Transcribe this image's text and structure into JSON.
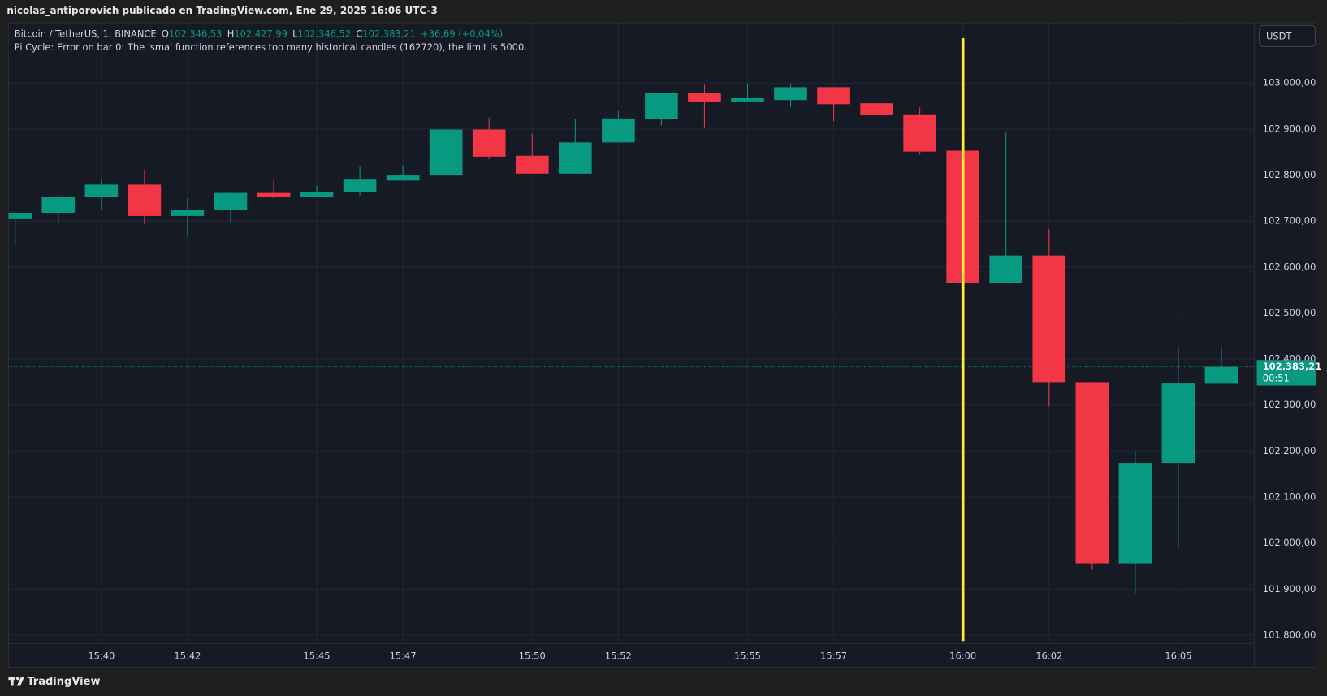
{
  "header": {
    "text": "nicolas_antiporovich publicado en TradingView.com, Ene 29, 2025 16:06 UTC-3"
  },
  "footer": {
    "brand": "TradingView"
  },
  "chart_data": {
    "type": "candlestick",
    "symbol": "Bitcoin / TetherUS, 1, BINANCE",
    "ohlc_legend": [
      {
        "name": "O",
        "label": "102.346,53"
      },
      {
        "name": "H",
        "label": "102.427,99"
      },
      {
        "name": "L",
        "label": "102.346,52"
      },
      {
        "name": "C",
        "label": "102.383,21"
      }
    ],
    "change": "+36,69 (+0,04%)",
    "error": "Pi Cycle: Error on bar 0: The 'sma' function references too many historical candles (162720), the limit is 5000.",
    "currency": "USDT",
    "up_color": "#089981",
    "down_color": "#f23645",
    "grid": true,
    "x": [
      "15:38",
      "15:39",
      "15:40",
      "15:41",
      "15:42",
      "15:43",
      "15:44",
      "15:45",
      "15:46",
      "15:47",
      "15:48",
      "15:49",
      "15:50",
      "15:51",
      "15:52",
      "15:53",
      "15:54",
      "15:55",
      "15:56",
      "15:57",
      "15:58",
      "15:59",
      "16:00",
      "16:01",
      "16:02",
      "16:03",
      "16:04",
      "16:05",
      "16:06"
    ],
    "open": [
      102704,
      102718,
      102753,
      102779,
      102711,
      102724,
      102761,
      102752,
      102763,
      102788,
      102799,
      102899,
      102842,
      102803,
      102871,
      102921,
      102978,
      102960,
      102963,
      102991,
      102956,
      102932,
      102853,
      102566,
      102625,
      102350,
      101956,
      102174,
      102346.53
    ],
    "high": [
      102718,
      102757,
      102790,
      102812,
      102750,
      102764,
      102788,
      102777,
      102818,
      102821,
      102899,
      102925,
      102890,
      102921,
      102939,
      102978,
      102996,
      102998,
      102998,
      102991,
      102956,
      102947,
      102853,
      102895,
      102683,
      102350,
      102199,
      102426,
      102427.99
    ],
    "low": [
      102647,
      102694,
      102724,
      102693,
      102669,
      102698,
      102748,
      102752,
      102755,
      102788,
      102799,
      102834,
      102803,
      102803,
      102871,
      102908,
      102904,
      102960,
      102948,
      102917,
      102930,
      102844,
      102472,
      102566,
      102297,
      101942,
      101890,
      101993,
      102346.52
    ],
    "close": [
      102718,
      102753,
      102779,
      102711,
      102724,
      102761,
      102752,
      102763,
      102790,
      102799,
      102899,
      102840,
      102803,
      102871,
      102923,
      102978,
      102960,
      102967,
      102991,
      102954,
      102930,
      102851,
      102566,
      102625,
      102350,
      101956,
      102174,
      102347,
      102383.21
    ],
    "ylim": [
      101730,
      103129
    ],
    "yticks": [
      {
        "value": 101800,
        "label": "101.800,00"
      },
      {
        "value": 101900,
        "label": "101.900,00"
      },
      {
        "value": 102000,
        "label": "102.000,00"
      },
      {
        "value": 102100,
        "label": "102.100,00"
      },
      {
        "value": 102200,
        "label": "102.200,00"
      },
      {
        "value": 102300,
        "label": "102.300,00"
      },
      {
        "value": 102400,
        "label": "102.400,00"
      },
      {
        "value": 102500,
        "label": "102.500,00"
      },
      {
        "value": 102600,
        "label": "102.600,00"
      },
      {
        "value": 102700,
        "label": "102.700,00"
      },
      {
        "value": 102800,
        "label": "102.800,00"
      },
      {
        "value": 102900,
        "label": "102.900,00"
      },
      {
        "value": 103000,
        "label": "103.000,00"
      }
    ],
    "xticks": [
      "15:40",
      "15:42",
      "15:45",
      "15:47",
      "15:50",
      "15:52",
      "15:55",
      "15:57",
      "16:00",
      "16:02",
      "16:05"
    ],
    "last_price": {
      "value": 102383.21,
      "label": "102.383,21"
    },
    "countdown": "00:51",
    "vertical_line": {
      "at": "16:00",
      "color": "#ffeb3b"
    }
  }
}
